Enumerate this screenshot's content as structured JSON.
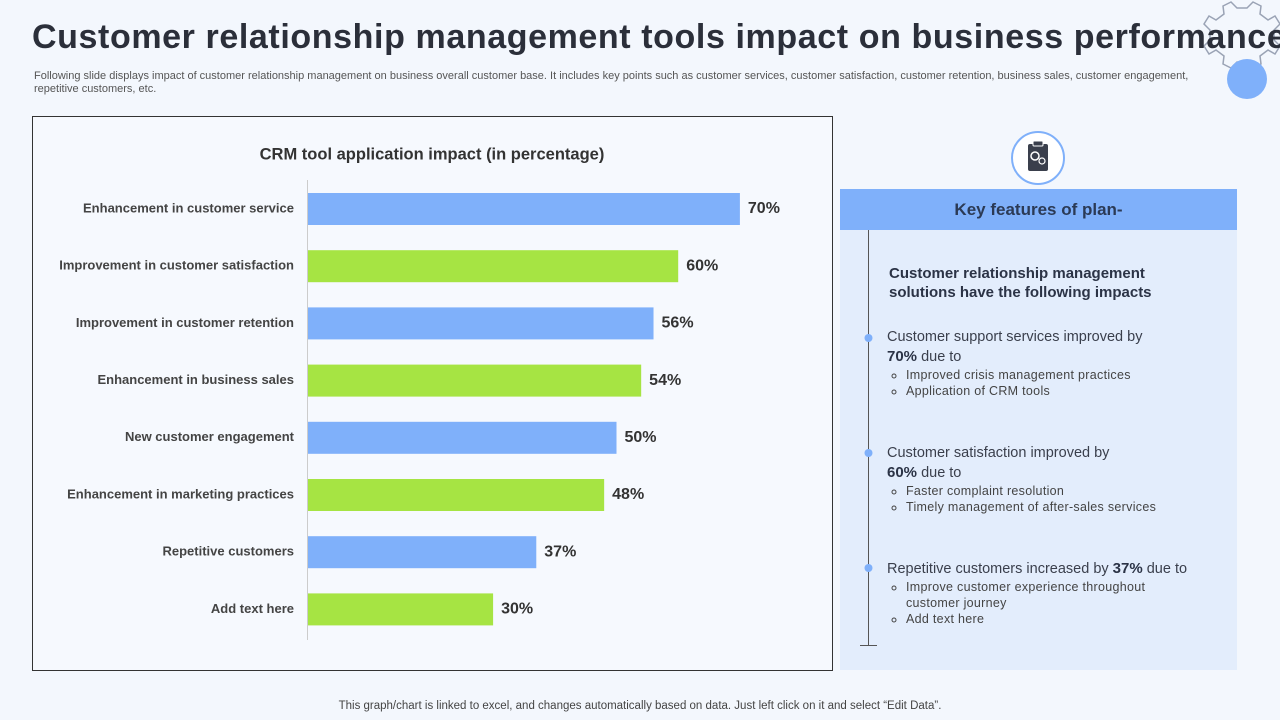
{
  "header": {
    "title": "Customer relationship management tools impact on business performance",
    "subtitle": "Following slide displays impact of customer relationship management on business overall customer base. It includes key points such as customer services, customer satisfaction, customer retention, business sales, customer engagement, repetitive customers, etc."
  },
  "chart_data": {
    "type": "bar",
    "title": "CRM tool application impact (in percentage)",
    "categories": [
      "Enhancement in customer service",
      "Improvement in customer satisfaction",
      "Improvement in customer retention",
      "Enhancement in business sales",
      "New customer engagement",
      "Enhancement in marketing practices",
      "Repetitive customers",
      "Add text here"
    ],
    "values": [
      70,
      60,
      56,
      54,
      50,
      48,
      37,
      30
    ],
    "value_labels": [
      "70%",
      "60%",
      "56%",
      "54%",
      "50%",
      "48%",
      "37%",
      "30%"
    ],
    "colors": [
      "#7fb0fa",
      "#a6e443"
    ]
  },
  "panel": {
    "heading": "Key features of plan-",
    "intro": "Customer relationship management solutions have the following impacts",
    "items": [
      {
        "lead": "Customer support services improved by",
        "figure": "70%",
        "tail": "due to",
        "bullets": [
          "Improved  crisis management  practices",
          "Application of CRM tools"
        ]
      },
      {
        "lead": "Customer satisfaction improved by",
        "figure": "60%",
        "tail": "due to",
        "bullets": [
          "Faster complaint resolution",
          "Timely management of after-sales services"
        ]
      },
      {
        "lead": "Repetitive customers increased by",
        "figure": "37%",
        "tail": "due to",
        "bullets": [
          "Improve  customer experience throughout customer journey",
          "Add text here"
        ]
      }
    ]
  },
  "footer": "This graph/chart is linked to excel,  and changes automatically based on data. Just left click on it and select “Edit Data”."
}
